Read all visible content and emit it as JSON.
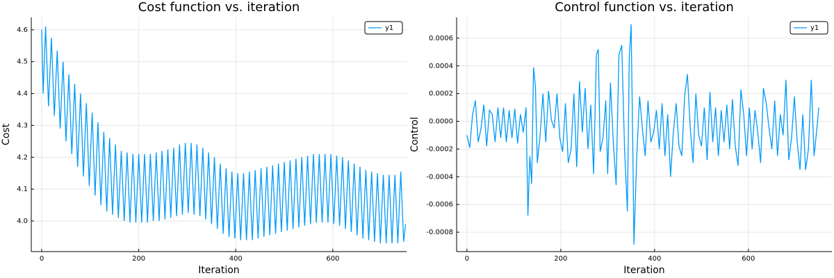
{
  "chart_data": [
    {
      "type": "line",
      "title": "Cost function vs. iteration",
      "xlabel": "Iteration",
      "ylabel": "Cost",
      "x": [
        0,
        3,
        8,
        14,
        20,
        26,
        32,
        38,
        44,
        50,
        56,
        62,
        68,
        74,
        80,
        86,
        92,
        98,
        104,
        110,
        116,
        122,
        128,
        134,
        140,
        146,
        152,
        158,
        164,
        170,
        176,
        182,
        188,
        194,
        200,
        206,
        212,
        218,
        224,
        230,
        236,
        242,
        248,
        254,
        260,
        266,
        272,
        278,
        284,
        290,
        296,
        302,
        308,
        314,
        320,
        326,
        332,
        338,
        344,
        350,
        356,
        362,
        368,
        374,
        380,
        386,
        392,
        398,
        404,
        410,
        416,
        422,
        428,
        434,
        440,
        446,
        452,
        458,
        464,
        470,
        476,
        482,
        488,
        494,
        500,
        506,
        512,
        518,
        524,
        530,
        536,
        542,
        548,
        554,
        560,
        566,
        572,
        578,
        584,
        590,
        596,
        602,
        608,
        614,
        620,
        626,
        632,
        638,
        644,
        650,
        656,
        662,
        668,
        674,
        680,
        686,
        692,
        698,
        704,
        710,
        716,
        722,
        728,
        734,
        740,
        746,
        750
      ],
      "series": [
        {
          "name": "y1",
          "color": "#009af9",
          "values": [
            4.6,
            4.4,
            4.61,
            4.36,
            4.575,
            4.33,
            4.535,
            4.29,
            4.5,
            4.25,
            4.46,
            4.21,
            4.43,
            4.17,
            4.4,
            4.14,
            4.37,
            4.11,
            4.34,
            4.08,
            4.31,
            4.05,
            4.28,
            4.03,
            4.26,
            4.02,
            4.24,
            4.01,
            4.22,
            4.0,
            4.215,
            3.995,
            4.21,
            3.995,
            4.21,
            3.995,
            4.21,
            3.995,
            4.21,
            4.0,
            4.215,
            4.0,
            4.22,
            4.005,
            4.225,
            4.01,
            4.23,
            4.015,
            4.24,
            4.02,
            4.245,
            4.025,
            4.245,
            4.02,
            4.24,
            4.015,
            4.23,
            4.005,
            4.215,
            3.99,
            4.2,
            3.975,
            4.18,
            3.96,
            4.165,
            3.95,
            4.155,
            3.945,
            4.15,
            3.94,
            4.15,
            3.94,
            4.155,
            3.94,
            4.16,
            3.945,
            4.165,
            3.95,
            4.17,
            3.955,
            4.175,
            3.96,
            4.18,
            3.965,
            4.185,
            3.97,
            4.19,
            3.975,
            4.195,
            3.98,
            4.2,
            3.985,
            4.205,
            3.99,
            4.21,
            3.995,
            4.21,
            3.995,
            4.21,
            3.995,
            4.21,
            3.99,
            4.205,
            3.985,
            4.2,
            3.975,
            4.19,
            3.965,
            4.18,
            3.955,
            4.17,
            3.945,
            4.16,
            3.94,
            4.155,
            3.935,
            4.15,
            3.93,
            4.145,
            3.93,
            4.145,
            3.93,
            4.145,
            3.93,
            4.155,
            3.935,
            3.99
          ]
        }
      ],
      "xlim": [
        -21.5,
        752
      ],
      "ylim": [
        3.904,
        4.639
      ],
      "xticks": [
        0,
        200,
        400,
        600
      ],
      "yticks": [
        {
          "value": 4,
          "label": "4.0"
        },
        4.1,
        4.2,
        4.3,
        4.4,
        4.5,
        4.6
      ],
      "grid": true,
      "legend": "top-right"
    },
    {
      "type": "line",
      "title": "Control function vs. iteration",
      "xlabel": "Iteration",
      "ylabel": "Control",
      "x": [
        0,
        6,
        12,
        18,
        24,
        30,
        36,
        42,
        48,
        54,
        60,
        66,
        72,
        78,
        84,
        90,
        96,
        102,
        108,
        114,
        120,
        126,
        130,
        134,
        138,
        142,
        146,
        150,
        156,
        162,
        168,
        174,
        180,
        186,
        192,
        198,
        204,
        210,
        216,
        222,
        228,
        234,
        240,
        246,
        252,
        258,
        264,
        270,
        276,
        280,
        284,
        290,
        296,
        300,
        306,
        312,
        318,
        324,
        330,
        336,
        342,
        346,
        350,
        354,
        356,
        362,
        368,
        374,
        380,
        386,
        392,
        398,
        404,
        410,
        416,
        422,
        428,
        434,
        440,
        446,
        452,
        458,
        464,
        470,
        476,
        482,
        488,
        494,
        500,
        506,
        512,
        518,
        524,
        530,
        536,
        542,
        548,
        554,
        560,
        566,
        572,
        578,
        584,
        590,
        596,
        602,
        608,
        614,
        620,
        626,
        632,
        638,
        644,
        650,
        656,
        662,
        668,
        674,
        680,
        686,
        692,
        698,
        704,
        710,
        716,
        722,
        728,
        734,
        740,
        746,
        750
      ],
      "series": [
        {
          "name": "y1",
          "color": "#009af9",
          "values": [
            -0.0001,
            -0.00019,
            5e-05,
            0.00015,
            -0.00015,
            -5e-05,
            0.00012,
            -0.00018,
            8e-05,
            5e-05,
            -0.00015,
            0.0001,
            -0.00012,
            0.0001,
            -0.00015,
            8e-05,
            -0.00012,
            9e-05,
            -0.00016,
            5e-05,
            -8e-05,
            0.0001,
            -0.00068,
            -0.00025,
            -0.00045,
            0.00039,
            0.00025,
            -0.0003,
            -0.0001,
            0.0002,
            -0.00015,
            0.00022,
            1e-05,
            -5e-05,
            0.0002,
            -0.00012,
            -0.00022,
            0.00013,
            -0.0003,
            -0.0002,
            0.0002,
            -0.00033,
            0.00029,
            -8e-05,
            0.00024,
            -0.0002,
            0.00012,
            -0.00038,
            0.00048,
            0.00052,
            -0.00022,
            -0.00012,
            0.00015,
            -0.00038,
            0.00028,
            -0.00015,
            -0.00046,
            0.00048,
            0.00055,
            -0.0002,
            -0.00065,
            0.00045,
            0.0007,
            -0.0003,
            -0.00089,
            -0.00025,
            0.00018,
            -5e-05,
            -0.00025,
            0.00015,
            -0.00015,
            -8e-05,
            8e-05,
            -0.0002,
            0.00013,
            -0.00025,
            5e-05,
            -0.0004,
            -8e-05,
            0.00013,
            -0.00018,
            -0.00025,
            0.00018,
            0.00034,
            -5e-05,
            -0.0003,
            0.0002,
            -0.0001,
            -0.00018,
            0.0001,
            -0.00028,
            0.00021,
            -0.00015,
            0.0001,
            -0.00025,
            8e-05,
            -0.00015,
            0.00012,
            -0.0002,
            0.00016,
            -0.00018,
            -0.00032,
            0.00023,
            5e-05,
            -0.00025,
            0.0001,
            -0.0002,
            8e-05,
            -8e-05,
            -0.0003,
            0.00024,
            0.00013,
            -5e-05,
            -0.0002,
            0.00015,
            -0.00025,
            5e-05,
            -0.0001,
            0.0003,
            -0.00028,
            -0.00012,
            0.00018,
            -0.00015,
            -0.00035,
            5e-05,
            -0.00035,
            -0.0002,
            0.0003,
            -0.00025,
            -5e-05,
            0.0001
          ]
        }
      ],
      "xlim": [
        -22,
        778
      ],
      "ylim": [
        -0.00094,
        0.00075
      ],
      "xticks": [
        0,
        200,
        400,
        600
      ],
      "yticks": [
        -0.0008,
        -0.0006,
        -0.0004,
        -0.0002,
        {
          "value": 0,
          "label": "0.0000"
        },
        0.0002,
        0.0004,
        0.0006
      ],
      "grid": true,
      "legend": "top-right"
    }
  ]
}
